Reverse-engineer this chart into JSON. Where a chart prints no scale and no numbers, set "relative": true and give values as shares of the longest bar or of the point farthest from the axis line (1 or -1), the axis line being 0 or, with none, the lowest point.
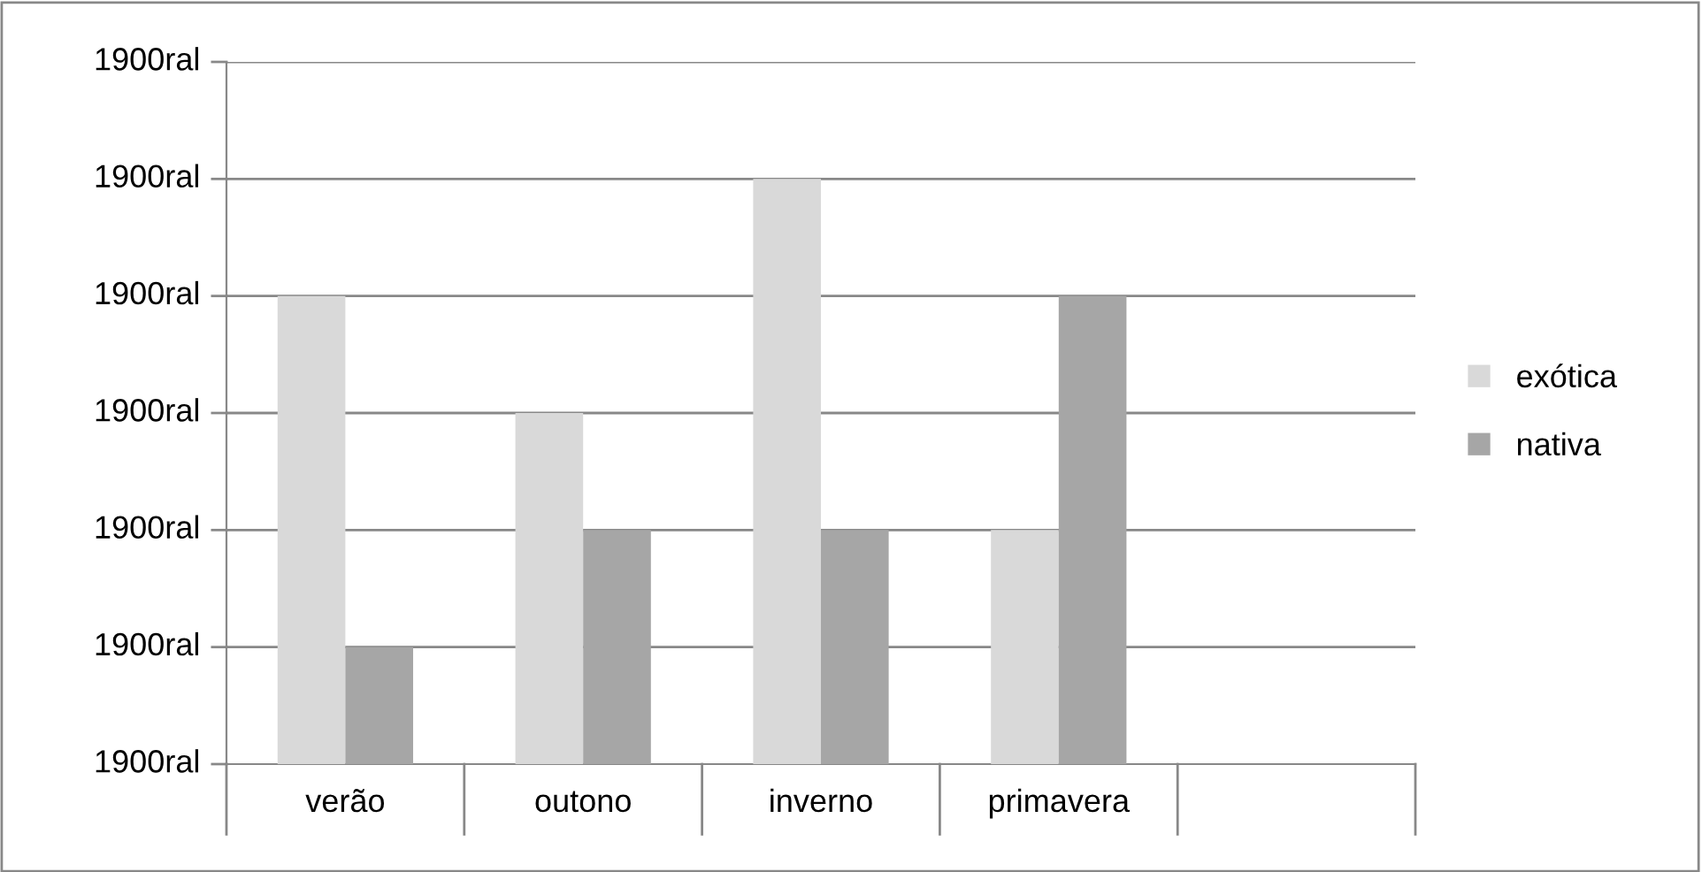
{
  "chart_data": {
    "type": "bar",
    "relative": true,
    "categories": [
      "verão",
      "outono",
      "inverno",
      "primavera",
      null
    ],
    "series": [
      {
        "name": "exótica",
        "color": "#d9d9d9",
        "values": [
          0.8,
          0.6,
          1,
          0.4,
          null
        ]
      },
      {
        "name": "nativa",
        "color": "#a6a6a6",
        "values": [
          0.2,
          0.4,
          0.4,
          0.8,
          null
        ]
      }
    ],
    "annotations": [
      "1900ral",
      "1900ral",
      "1900ral",
      "1900ral",
      "1900ral",
      "1900ral",
      "1900ral"
    ],
    "grid": "y",
    "legend": "right"
  }
}
